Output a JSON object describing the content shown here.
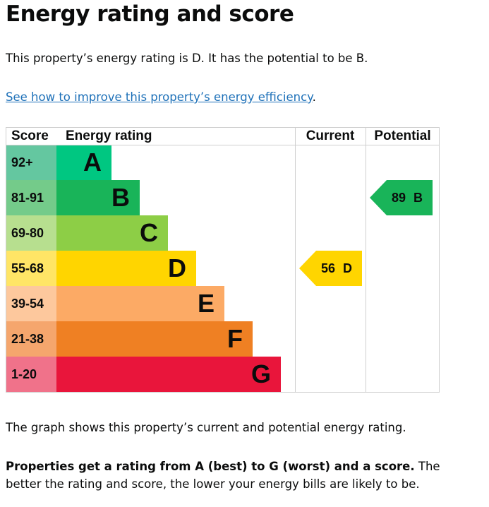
{
  "title": "Energy rating and score",
  "intro": "This property’s energy rating is D. It has the potential to be B.",
  "link_text": "See how to improve this property’s energy efficiency",
  "link_suffix": ".",
  "chart_data": {
    "type": "bar",
    "headers": {
      "score": "Score",
      "rating": "Energy rating",
      "current": "Current",
      "potential": "Potential"
    },
    "bands": [
      {
        "score": "92+",
        "letter": "A",
        "color": "#00c781",
        "score_color": "#64c7a0"
      },
      {
        "score": "81-91",
        "letter": "B",
        "color": "#19b459",
        "score_color": "#74cb8a"
      },
      {
        "score": "69-80",
        "letter": "C",
        "color": "#8dce46",
        "score_color": "#b7df8f"
      },
      {
        "score": "55-68",
        "letter": "D",
        "color": "#ffd500",
        "score_color": "#ffe566"
      },
      {
        "score": "39-54",
        "letter": "E",
        "color": "#fcaa65",
        "score_color": "#fdc89d"
      },
      {
        "score": "21-38",
        "letter": "F",
        "color": "#ef8023",
        "score_color": "#f5a66d"
      },
      {
        "score": "1-20",
        "letter": "G",
        "color": "#e9153b",
        "score_color": "#f0728a"
      }
    ],
    "current": {
      "label": "56 D",
      "score": 56,
      "band": "D"
    },
    "potential": {
      "label": "89 B",
      "score": 89,
      "band": "B"
    }
  },
  "graph_note": "The graph shows this property’s current and potential energy rating.",
  "rating_bold": "Properties get a rating from A (best) to G (worst) and a score.",
  "rating_rest": " The better the rating and score, the lower your energy bills are likely to be."
}
